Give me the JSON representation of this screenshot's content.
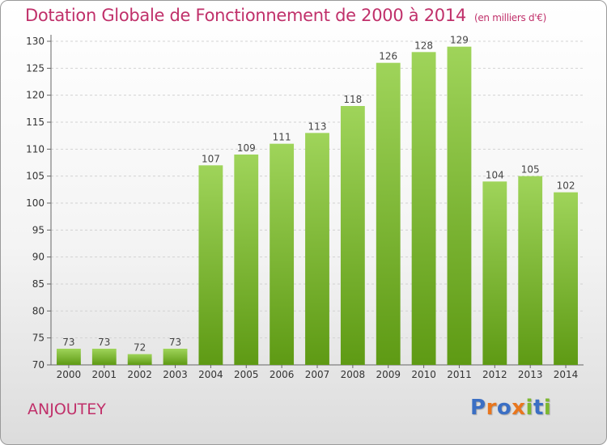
{
  "header": {
    "title": "Dotation Globale de Fonctionnement de 2000 à 2014",
    "unit": "(en milliers d'€)"
  },
  "footer": {
    "commune": "ANJOUTEY",
    "logo": [
      "P",
      "r",
      "o",
      "x",
      "i",
      "t",
      "i"
    ]
  },
  "colors": {
    "title": "#c0306a",
    "bar_top": "#9fd45a",
    "bar_bottom": "#5e9a14",
    "logo": [
      "#3b6fc4",
      "#e8761e",
      "#3b6fc4",
      "#e8761e",
      "#7cb82f",
      "#3b6fc4",
      "#7cb82f"
    ]
  },
  "chart_data": {
    "type": "bar",
    "title": "Dotation Globale de Fonctionnement de 2000 à 2014",
    "subtitle": "(en milliers d'€)",
    "categories": [
      "2000",
      "2001",
      "2002",
      "2003",
      "2004",
      "2005",
      "2006",
      "2007",
      "2008",
      "2009",
      "2010",
      "2011",
      "2012",
      "2013",
      "2014"
    ],
    "values": [
      73,
      73,
      72,
      73,
      107,
      109,
      111,
      113,
      118,
      126,
      128,
      129,
      104,
      105,
      102
    ],
    "ylim": [
      70,
      130
    ],
    "yticks": [
      70,
      75,
      80,
      85,
      90,
      95,
      100,
      105,
      110,
      115,
      120,
      125,
      130
    ],
    "grid": true,
    "data_labels": true
  }
}
